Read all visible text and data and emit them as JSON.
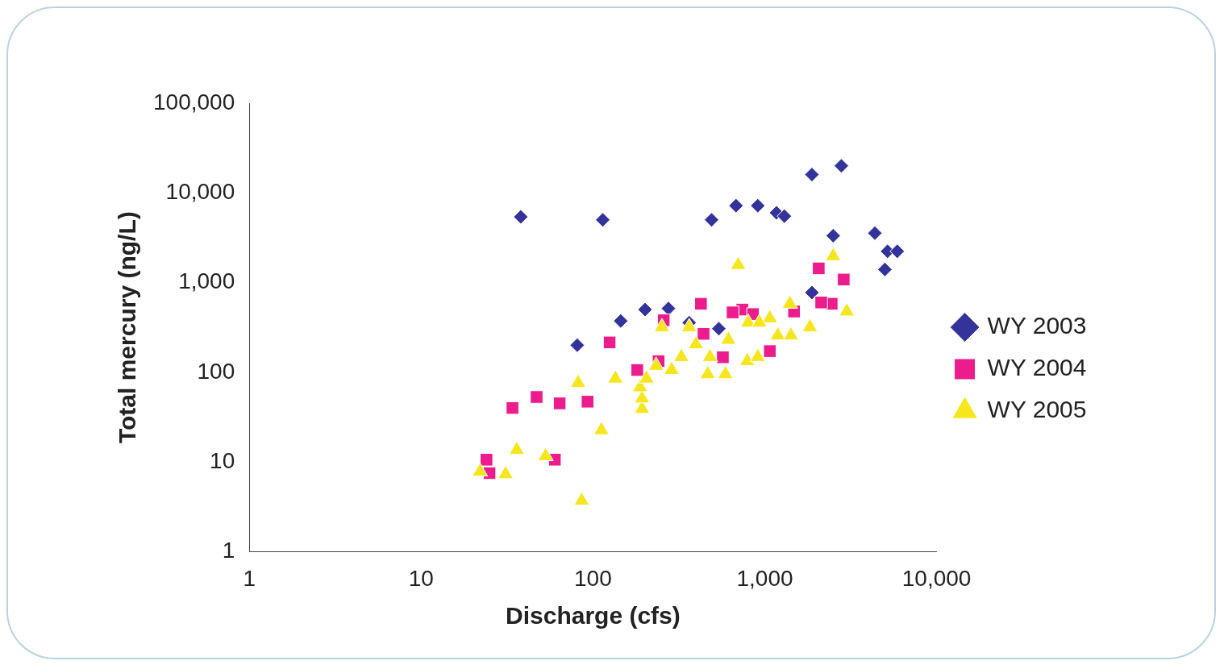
{
  "chart_data": {
    "type": "scatter",
    "xlabel": "Discharge (cfs)",
    "ylabel": "Total mercury (ng/L)",
    "log": "xy",
    "grid": false,
    "legend": "right",
    "xlim": [
      1,
      10000
    ],
    "ylim": [
      1,
      100000
    ],
    "xticks": [
      1,
      10,
      100,
      {
        "value": 1000,
        "label": "1,000"
      },
      {
        "value": 10000,
        "label": "10,000"
      }
    ],
    "yticks": [
      1,
      10,
      100,
      {
        "value": 1000,
        "label": "1,000"
      },
      {
        "value": 10000,
        "label": "10,000"
      },
      {
        "value": 100000,
        "label": "100,000"
      }
    ],
    "series": [
      {
        "name": "WY 2003",
        "color": "#333399",
        "marker": "diamond",
        "x": [
          38,
          114,
          490,
          680,
          910,
          1170,
          1300,
          1880,
          2790,
          2500,
          4370,
          5180,
          5900,
          5000,
          81,
          145,
          201,
          275,
          363,
          540,
          1880
        ],
        "values": [
          5400,
          5000,
          5000,
          7200,
          7200,
          6000,
          5500,
          16000,
          20000,
          3330,
          3550,
          2230,
          2230,
          1400,
          200,
          373,
          500,
          515,
          357,
          306,
          774
        ]
      },
      {
        "name": "WY 2004",
        "color": "#ec1c8c",
        "marker": "square",
        "x": [
          24,
          25,
          34,
          47,
          64,
          93,
          60,
          125,
          181,
          241,
          258,
          425,
          740,
          854,
          440,
          570,
          1070,
          1480,
          2450,
          2060,
          2880,
          2130,
          650
        ],
        "values": [
          10.6,
          7.5,
          40,
          53,
          45,
          47,
          10.6,
          215,
          106,
          133,
          380,
          580,
          500,
          445,
          268,
          147,
          172,
          476,
          580,
          1440,
          1080,
          600,
          465
        ]
      },
      {
        "name": "WY 2005",
        "color": "#f5e61e",
        "marker": "triangle",
        "x": [
          22,
          31,
          36,
          53,
          86,
          82,
          112,
          135,
          193,
          193,
          188,
          205,
          233,
          252,
          287,
          327,
          363,
          397,
          465,
          480,
          590,
          614,
          700,
          790,
          800,
          910,
          1070,
          1190,
          1420,
          1400,
          1830,
          2500,
          3000,
          930
        ],
        "values": [
          7.8,
          7.3,
          13.6,
          11.6,
          3.7,
          76,
          22.6,
          85,
          39,
          51,
          68,
          85,
          118,
          318,
          106,
          148,
          318,
          205,
          95,
          148,
          95,
          230,
          1570,
          133,
          357,
          148,
          400,
          257,
          257,
          580,
          318,
          1970,
          476,
          357
        ]
      }
    ]
  }
}
